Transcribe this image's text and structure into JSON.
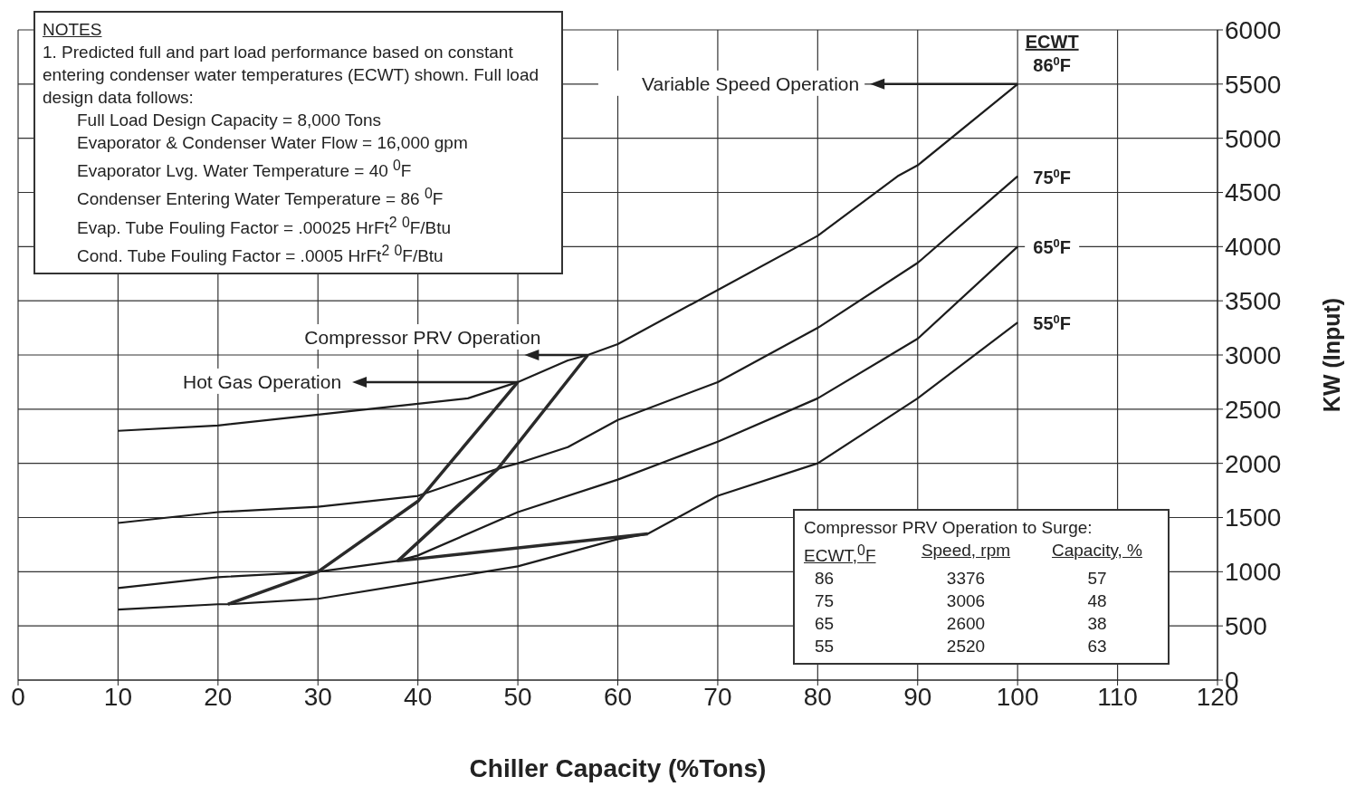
{
  "chart_data": {
    "type": "line",
    "xlabel": "Chiller Capacity (%Tons)",
    "ylabel": "KW (Input)",
    "legend_title": "ECWT",
    "xlim": [
      0,
      120
    ],
    "xticks": [
      0,
      10,
      20,
      30,
      40,
      50,
      60,
      70,
      80,
      90,
      100,
      110,
      120
    ],
    "ylim": [
      0,
      6000
    ],
    "yticks": [
      0,
      500,
      1000,
      1500,
      2000,
      2500,
      3000,
      3500,
      4000,
      4500,
      5000,
      5500,
      6000
    ],
    "grid": true,
    "marker": "none",
    "line_style": "solid",
    "series": [
      {
        "name": "86$^{0}$F",
        "color": "#1c1c1c",
        "x": [
          10,
          20,
          30,
          40,
          45,
          50,
          55,
          57,
          60,
          70,
          80,
          88,
          90,
          100
        ],
        "values": [
          2300,
          2350,
          2450,
          2550,
          2600,
          2750,
          2950,
          3000,
          3100,
          3600,
          4100,
          4650,
          4750,
          5500
        ]
      },
      {
        "name": "75$^{0}$F",
        "color": "#1c1c1c",
        "x": [
          10,
          20,
          30,
          40,
          48,
          50,
          55,
          60,
          70,
          80,
          90,
          100
        ],
        "values": [
          1450,
          1550,
          1600,
          1700,
          1950,
          2000,
          2150,
          2400,
          2750,
          3250,
          3850,
          4650
        ]
      },
      {
        "name": "65$^{0}$F",
        "color": "#1c1c1c",
        "x": [
          10,
          20,
          30,
          38,
          40,
          50,
          60,
          70,
          80,
          90,
          100
        ],
        "values": [
          850,
          950,
          1000,
          1100,
          1150,
          1550,
          1850,
          2200,
          2600,
          3150,
          4000
        ]
      },
      {
        "name": "55$^{0}$F",
        "color": "#1c1c1c",
        "x": [
          10,
          20,
          21,
          30,
          40,
          50,
          60,
          63,
          70,
          80,
          90,
          100
        ],
        "values": [
          650,
          700,
          700,
          750,
          900,
          1050,
          1300,
          1350,
          1700,
          2000,
          2600,
          3300
        ]
      },
      {
        "color": "#2a2a2a",
        "x": [
          21,
          30,
          40,
          50
        ],
        "values": [
          700,
          1000,
          1650,
          2750
        ]
      },
      {
        "color": "#2a2a2a",
        "x": [
          57,
          48,
          38,
          63
        ],
        "values": [
          3000,
          1950,
          1100,
          1350
        ]
      }
    ],
    "annotations": [
      "NOTES",
      "1.  Predicted full and part load performance based on constant entering condenser water temperatures (ECWT) shown.  Full load design data follows:",
      "Full Load Design Capacity = 8,000 Tons",
      "Evaporator & Condenser Water Flow = 16,000 gpm",
      "Evaporator Lvg. Water Temperature  = 40 $^{0}$F",
      "Condenser Entering Water Temperature = 86 $^{0}$F",
      "Evap. Tube Fouling Factor =  .00025 HrFt$^{2}$ $^{0}$F/Btu",
      "Cond. Tube Fouling Factor =  .0005 HrFt$^{2}$ $^{0}$F/Btu",
      "Compressor PRV Operation to Surge:",
      "ECWT,$^{0}$F\tSpeed, rpm\tCapacity, %",
      "86\t3376\t57",
      "75\t3006\t48",
      "65\t2600\t38",
      "55\t2520\t63",
      {
        "text": "Variable Speed Operation",
        "x": 100,
        "y": 5500
      },
      {
        "text": "Compressor PRV Operation",
        "x": 57,
        "y": 3000
      },
      {
        "text": "Hot Gas Operation",
        "x": 50,
        "y": 2750
      }
    ]
  }
}
